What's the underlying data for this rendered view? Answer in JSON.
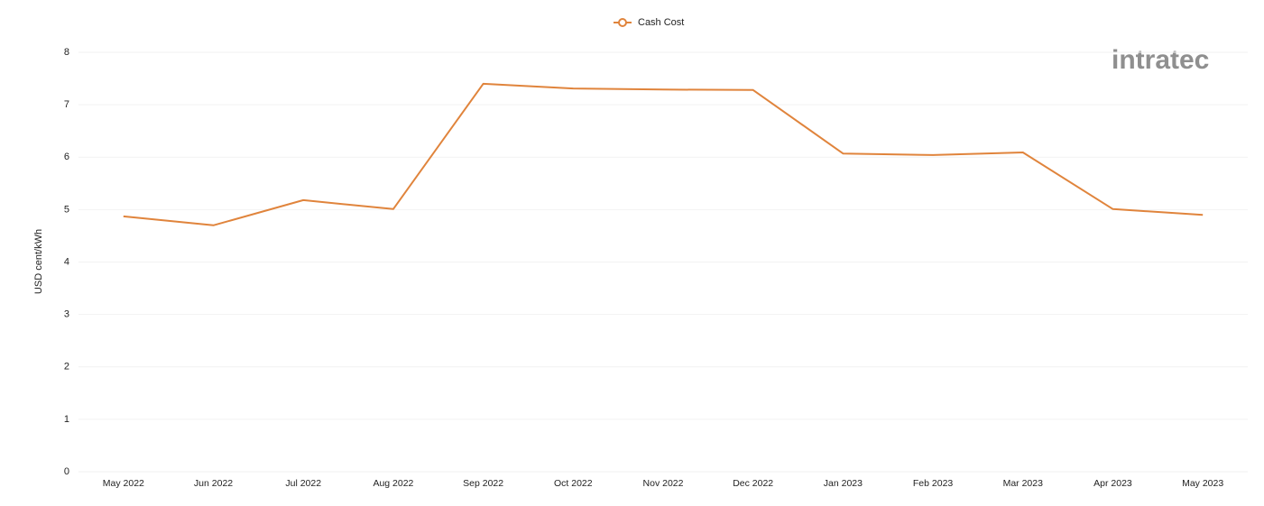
{
  "chart_data": {
    "type": "line",
    "legend_position": "top",
    "y_label": "USD cent/kWh",
    "watermark": "intratec",
    "categories": [
      "May 2022",
      "Jun 2022",
      "Jul 2022",
      "Aug 2022",
      "Sep 2022",
      "Oct 2022",
      "Nov 2022",
      "Dec 2022",
      "Jan 2023",
      "Feb 2023",
      "Mar 2023",
      "Apr 2023",
      "May 2023"
    ],
    "series": [
      {
        "name": "Cash Cost",
        "color": "#e0843c",
        "values": [
          4.87,
          4.7,
          5.18,
          5.01,
          7.4,
          7.31,
          7.29,
          7.28,
          6.07,
          6.04,
          6.09,
          5.01,
          4.9
        ]
      }
    ],
    "ylim": [
      0,
      8
    ],
    "yticks": [
      0,
      1,
      2,
      3,
      4,
      5,
      6,
      7,
      8
    ],
    "grid": true
  }
}
